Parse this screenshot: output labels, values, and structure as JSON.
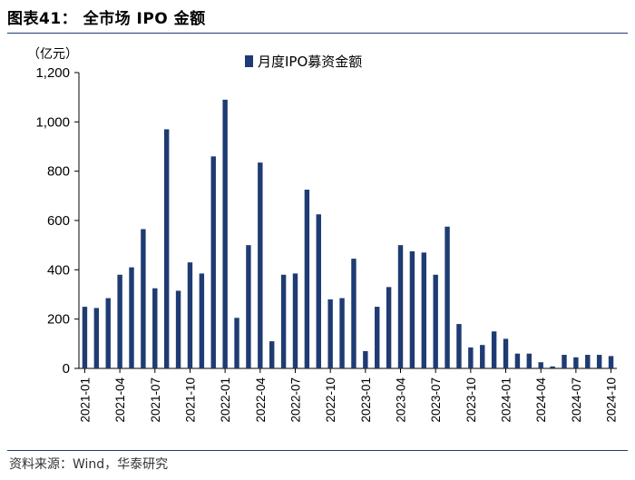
{
  "header": {
    "title": "图表41：  全市场 IPO 金额"
  },
  "source": {
    "text": "资料来源：Wind，华泰研究"
  },
  "chart_data": {
    "type": "bar",
    "title": "全市场 IPO 金额",
    "ylabel": "（亿元）",
    "xlabel": "",
    "ylim": [
      0,
      1200
    ],
    "yticks": [
      0,
      200,
      400,
      600,
      800,
      1000,
      1200
    ],
    "ytick_labels": [
      "0",
      "200",
      "400",
      "600",
      "800",
      "1,000",
      "1,200"
    ],
    "legend": "top-center",
    "color": "#1f3b73",
    "categories": [
      "2021-01",
      "2021-02",
      "2021-03",
      "2021-04",
      "2021-05",
      "2021-06",
      "2021-07",
      "2021-08",
      "2021-09",
      "2021-10",
      "2021-11",
      "2021-12",
      "2022-01",
      "2022-02",
      "2022-03",
      "2022-04",
      "2022-05",
      "2022-06",
      "2022-07",
      "2022-08",
      "2022-09",
      "2022-10",
      "2022-11",
      "2022-12",
      "2023-01",
      "2023-02",
      "2023-03",
      "2023-04",
      "2023-05",
      "2023-06",
      "2023-07",
      "2023-08",
      "2023-09",
      "2023-10",
      "2023-11",
      "2023-12",
      "2024-01",
      "2024-02",
      "2024-03",
      "2024-04",
      "2024-05",
      "2024-06",
      "2024-07",
      "2024-08",
      "2024-09",
      "2024-10"
    ],
    "xtick_labels": [
      "2021-01",
      "2021-04",
      "2021-07",
      "2021-10",
      "2022-01",
      "2022-04",
      "2022-07",
      "2022-10",
      "2023-01",
      "2023-04",
      "2023-07",
      "2023-10",
      "2024-01",
      "2024-04",
      "2024-07",
      "2024-10"
    ],
    "series": [
      {
        "name": "月度IPO募资金额",
        "values": [
          250,
          245,
          285,
          380,
          410,
          565,
          325,
          970,
          315,
          430,
          385,
          860,
          1090,
          205,
          500,
          835,
          110,
          380,
          385,
          725,
          625,
          280,
          285,
          445,
          70,
          250,
          330,
          500,
          475,
          470,
          380,
          575,
          180,
          85,
          95,
          150,
          120,
          60,
          60,
          25,
          8,
          55,
          45,
          55,
          55,
          50
        ]
      }
    ]
  }
}
